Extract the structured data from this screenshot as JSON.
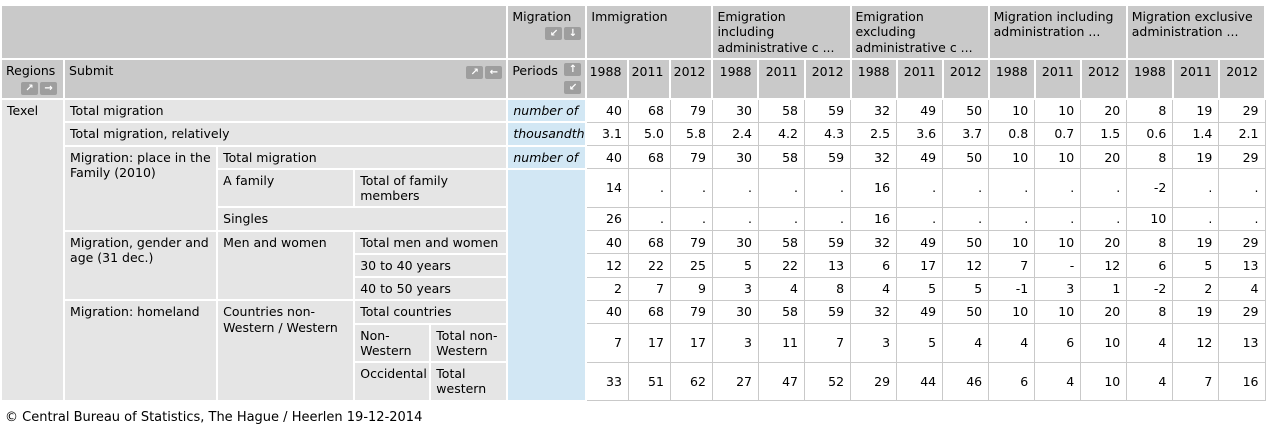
{
  "table": {
    "region": "Texel",
    "header": {
      "regions_label": "Regions",
      "submit_label": "Submit",
      "migration_label": "Migration",
      "periods_label": "Periods"
    },
    "icons": {
      "down_left": "↙",
      "down": "↓",
      "up_right": "↗",
      "right": "→",
      "left": "←",
      "up": "↑"
    },
    "groups": [
      {
        "label": "Immigration",
        "years": [
          "1988",
          "2011",
          "2012"
        ]
      },
      {
        "label": "Emigration including administrative c ...",
        "years": [
          "1988",
          "2011",
          "2012"
        ]
      },
      {
        "label": "Emigration excluding administrative c ...",
        "years": [
          "1988",
          "2011",
          "2012"
        ]
      },
      {
        "label": "Migration including administration ...",
        "years": [
          "1988",
          "2011",
          "2012"
        ]
      },
      {
        "label": "Migration exclusive administration ...",
        "years": [
          "1988",
          "2011",
          "2012"
        ]
      }
    ],
    "rows": [
      {
        "labels": [
          {
            "text": "Total migration",
            "colspan": 4
          }
        ],
        "unit": {
          "text": "number of"
        },
        "values": [
          "40",
          "68",
          "79",
          "30",
          "58",
          "59",
          "32",
          "49",
          "50",
          "10",
          "10",
          "20",
          "8",
          "19",
          "29"
        ]
      },
      {
        "labels": [
          {
            "text": "Total migration, relatively",
            "colspan": 4
          }
        ],
        "unit": {
          "text": "thousandth"
        },
        "values": [
          "3.1",
          "5.0",
          "5.8",
          "2.4",
          "4.2",
          "4.3",
          "2.5",
          "3.6",
          "3.7",
          "0.8",
          "0.7",
          "1.5",
          "0.6",
          "1.4",
          "2.1"
        ]
      },
      {
        "labels": [
          {
            "text": "Migration: place in the Family (2010)",
            "rowspan": 3
          },
          {
            "text": "Total migration",
            "colspan": 3
          }
        ],
        "unit": {
          "text": "number of"
        },
        "values": [
          "40",
          "68",
          "79",
          "30",
          "58",
          "59",
          "32",
          "49",
          "50",
          "10",
          "10",
          "20",
          "8",
          "19",
          "29"
        ]
      },
      {
        "labels": [
          {
            "text": "A family"
          },
          {
            "text": "Total of family members",
            "colspan": 2
          }
        ],
        "unit": {
          "text": "",
          "rowspan": 8
        },
        "values": [
          "14",
          ".",
          ".",
          ".",
          ".",
          ".",
          "16",
          ".",
          ".",
          ".",
          ".",
          ".",
          "-2",
          ".",
          "."
        ]
      },
      {
        "labels": [
          {
            "text": "Singles",
            "colspan": 3
          }
        ],
        "values": [
          "26",
          ".",
          ".",
          ".",
          ".",
          ".",
          "16",
          ".",
          ".",
          ".",
          ".",
          ".",
          "10",
          ".",
          "."
        ]
      },
      {
        "labels": [
          {
            "text": "Migration, gender and age (31 dec.)",
            "rowspan": 3
          },
          {
            "text": "Men and women",
            "rowspan": 3
          },
          {
            "text": "Total men and women",
            "colspan": 2
          }
        ],
        "values": [
          "40",
          "68",
          "79",
          "30",
          "58",
          "59",
          "32",
          "49",
          "50",
          "10",
          "10",
          "20",
          "8",
          "19",
          "29"
        ]
      },
      {
        "labels": [
          {
            "text": "30 to 40 years",
            "colspan": 2
          }
        ],
        "values": [
          "12",
          "22",
          "25",
          "5",
          "22",
          "13",
          "6",
          "17",
          "12",
          "7",
          "-",
          "12",
          "6",
          "5",
          "13"
        ]
      },
      {
        "labels": [
          {
            "text": "40 to 50 years",
            "colspan": 2
          }
        ],
        "values": [
          "2",
          "7",
          "9",
          "3",
          "4",
          "8",
          "4",
          "5",
          "5",
          "-1",
          "3",
          "1",
          "-2",
          "2",
          "4"
        ]
      },
      {
        "labels": [
          {
            "text": "Migration: homeland",
            "rowspan": 3
          },
          {
            "text": "Countries non-Western / Western",
            "rowspan": 3
          },
          {
            "text": "Total countries",
            "colspan": 2
          }
        ],
        "values": [
          "40",
          "68",
          "79",
          "30",
          "58",
          "59",
          "32",
          "49",
          "50",
          "10",
          "10",
          "20",
          "8",
          "19",
          "29"
        ]
      },
      {
        "labels": [
          {
            "text": "Non-Western"
          },
          {
            "text": "Total non-Western"
          }
        ],
        "values": [
          "7",
          "17",
          "17",
          "3",
          "11",
          "7",
          "3",
          "5",
          "4",
          "4",
          "6",
          "10",
          "4",
          "12",
          "13"
        ]
      },
      {
        "labels": [
          {
            "text": "Occidental"
          },
          {
            "text": "Total western"
          }
        ],
        "values": [
          "33",
          "51",
          "62",
          "27",
          "47",
          "52",
          "29",
          "44",
          "46",
          "6",
          "4",
          "10",
          "4",
          "7",
          "16"
        ]
      }
    ],
    "footer": "© Central Bureau of Statistics, The Hague / Heerlen 19-12-2014"
  }
}
